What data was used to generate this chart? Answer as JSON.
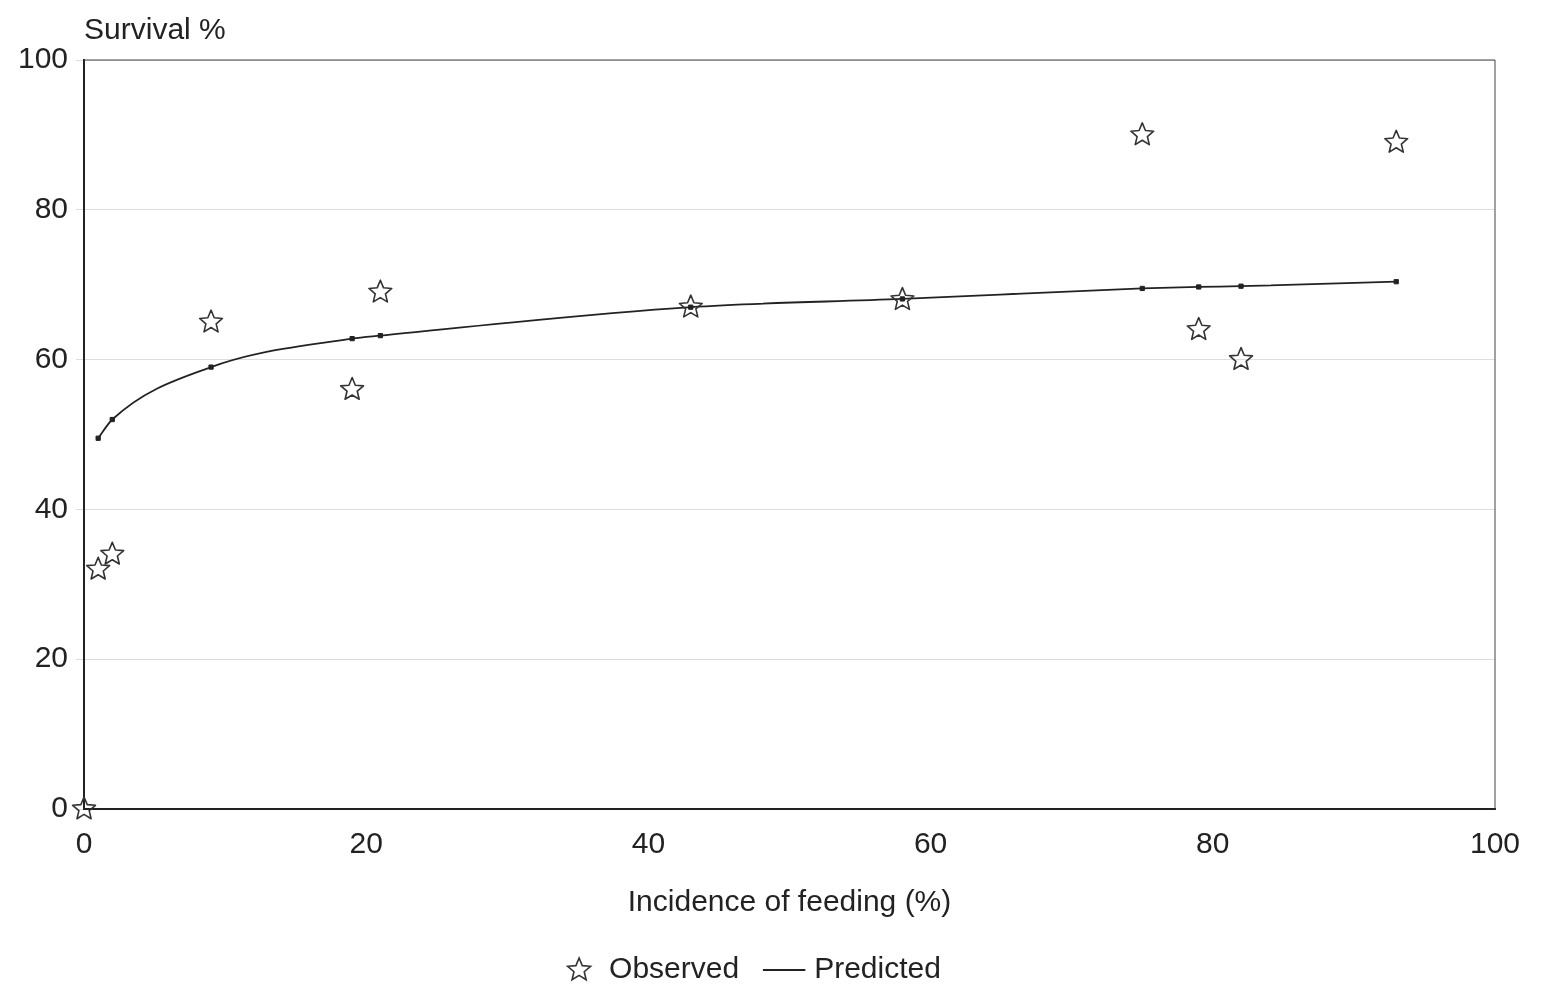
{
  "chart_data": {
    "type": "scatter",
    "xlabel": "Incidence of feeding (%)",
    "ylabel": "Survival %",
    "xlim": [
      0,
      100
    ],
    "xticks": [
      0,
      20,
      40,
      60,
      80,
      100
    ],
    "ylim": [
      0,
      100
    ],
    "yticks": [
      0,
      20,
      40,
      60,
      80,
      100
    ],
    "grid": "y",
    "legend": "bottom",
    "series": [
      {
        "name": "Observed",
        "type": "scatter",
        "marker": "star",
        "color": "#333333",
        "x": [
          0,
          1,
          2,
          9,
          19,
          21,
          43,
          58,
          75,
          79,
          82,
          93
        ],
        "values": [
          0,
          32,
          34,
          65,
          56,
          69,
          67,
          68,
          90,
          64,
          60,
          89
        ]
      },
      {
        "name": "Predicted",
        "type": "line",
        "marker": "square",
        "color": "#222222",
        "x": [
          1,
          2,
          9,
          19,
          21,
          43,
          58,
          75,
          79,
          82,
          93
        ],
        "values": [
          49.5,
          52,
          59,
          62.8,
          63.2,
          67,
          68.1,
          69.5,
          69.7,
          69.8,
          70.4
        ]
      }
    ]
  }
}
